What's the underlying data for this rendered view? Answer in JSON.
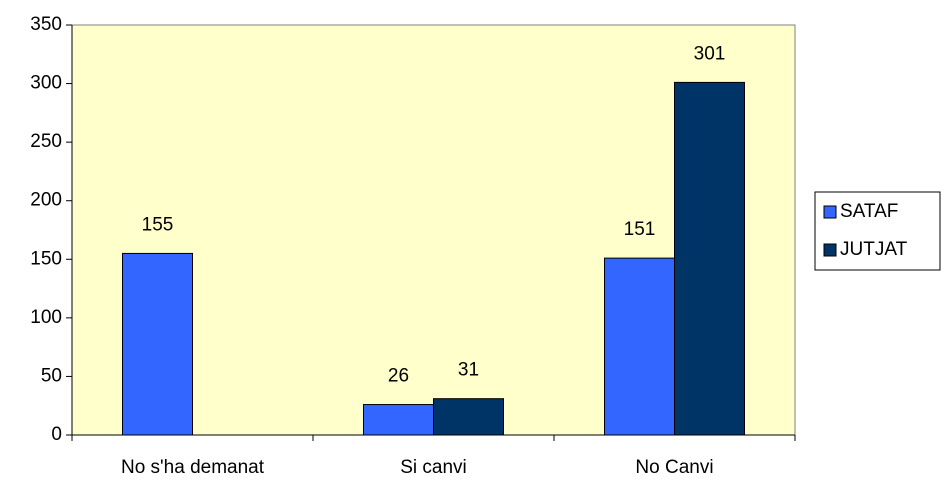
{
  "chart_data": {
    "type": "bar",
    "categories": [
      "No s'ha demanat",
      "Si canvi",
      "No Canvi"
    ],
    "series": [
      {
        "name": "SATAF",
        "color": "#3366ff",
        "values": [
          155,
          26,
          151
        ]
      },
      {
        "name": "JUTJAT",
        "color": "#003366",
        "values": [
          null,
          31,
          301
        ]
      }
    ],
    "ylim": [
      0,
      350
    ],
    "yticks": [
      0,
      50,
      100,
      150,
      200,
      250,
      300,
      350
    ],
    "plot_background": "#ffffcc",
    "legend": "right"
  }
}
